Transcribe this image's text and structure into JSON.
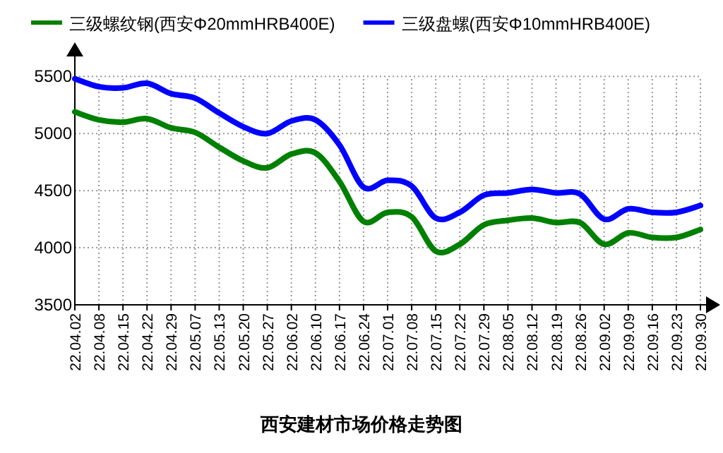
{
  "chart_data": {
    "type": "line",
    "title": "西安建材市场价格走势图",
    "categories": [
      "22.04.02",
      "22.04.08",
      "22.04.15",
      "22.04.22",
      "22.04.29",
      "22.05.07",
      "22.05.13",
      "22.05.20",
      "22.05.27",
      "22.06.02",
      "22.06.10",
      "22.06.17",
      "22.06.24",
      "22.07.01",
      "22.07.08",
      "22.07.15",
      "22.07.22",
      "22.07.29",
      "22.08.05",
      "22.08.12",
      "22.08.19",
      "22.08.26",
      "22.09.02",
      "22.09.09",
      "22.09.16",
      "22.09.23",
      "22.09.30"
    ],
    "series": [
      {
        "name": "三级螺纹钢(西安Φ20mmHRB400E)",
        "color": "#008000",
        "values": [
          5190,
          5120,
          5100,
          5130,
          5050,
          5010,
          4880,
          4760,
          4700,
          4820,
          4830,
          4580,
          4230,
          4310,
          4270,
          3970,
          4030,
          4200,
          4240,
          4260,
          4220,
          4220,
          4030,
          4130,
          4090,
          4090,
          4160
        ]
      },
      {
        "name": "三级盘螺(西安Φ10mmHRB400E)",
        "color": "#0000ff",
        "values": [
          5480,
          5410,
          5400,
          5440,
          5350,
          5310,
          5180,
          5060,
          5000,
          5110,
          5120,
          4900,
          4530,
          4590,
          4540,
          4260,
          4310,
          4460,
          4480,
          4510,
          4480,
          4470,
          4250,
          4340,
          4310,
          4310,
          4370
        ]
      }
    ],
    "ylim": [
      3500,
      5700
    ],
    "yticks": [
      3500,
      4000,
      4500,
      5000,
      5500
    ],
    "grid": true,
    "legend": "top",
    "marker": "none",
    "line_style": "solid"
  }
}
